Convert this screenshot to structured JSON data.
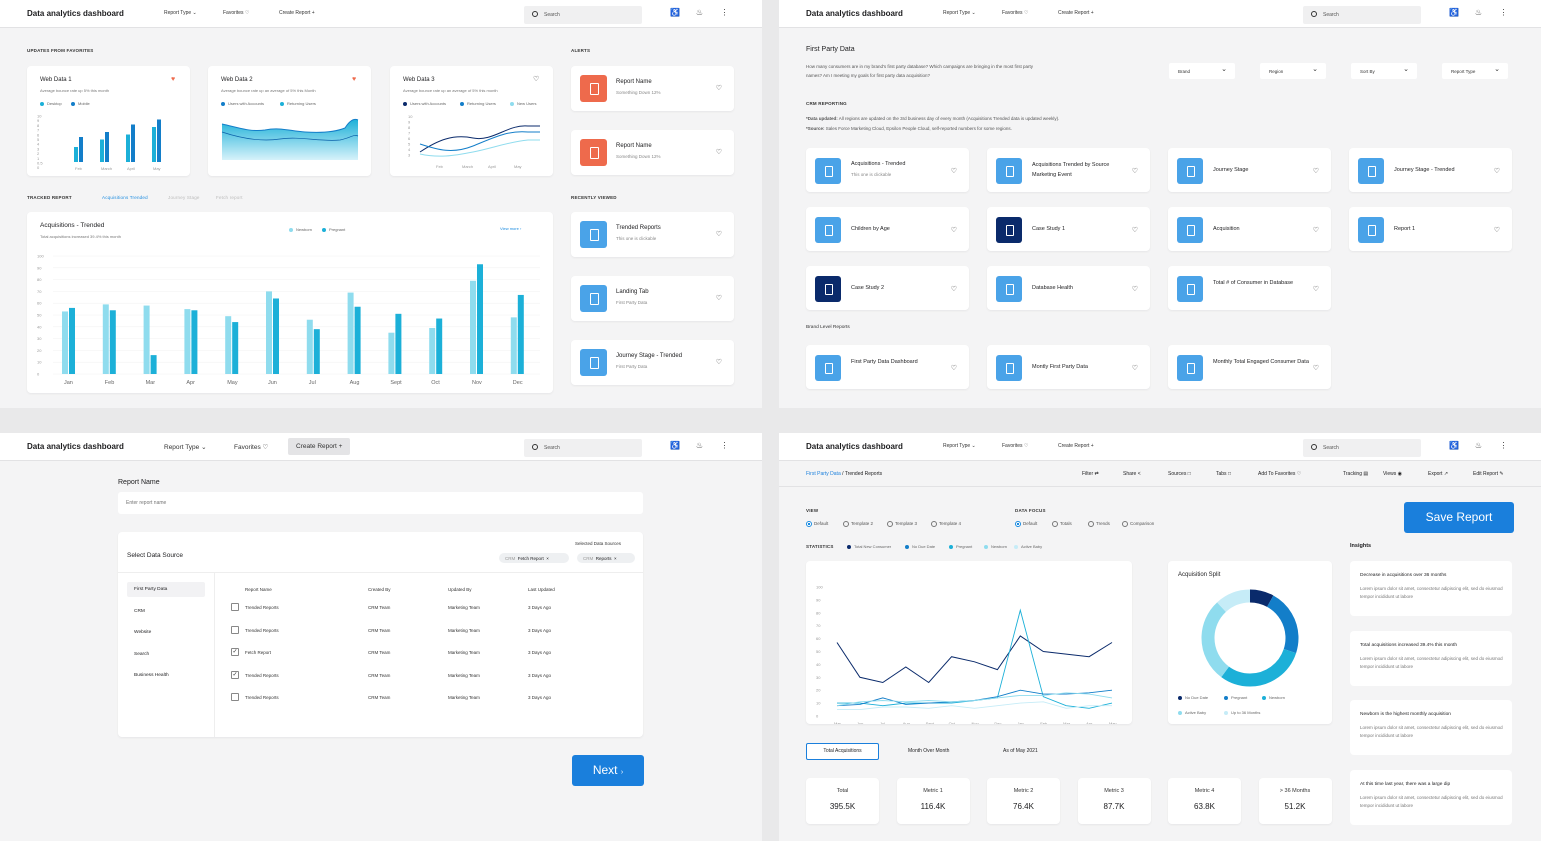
{
  "header": {
    "title": "Data analytics dashboard",
    "report_type": "Report Type",
    "favorites": "Favorites",
    "create_report": "Create Report",
    "search_placeholder": "Search"
  },
  "p1": {
    "favorites_label": "UPDATES FROM FAVORITES",
    "alerts_label": "ALERTS",
    "tracked_label": "TRACKED REPORT",
    "recent_label": "RECENTLY VIEWED",
    "tabs": [
      "Acquisitions Trended",
      "Journey Stage",
      "Fetch report"
    ],
    "web1": {
      "title": "Web Data 1",
      "sub": "Average bounce rate up 5% this month",
      "legend": [
        "Desktop",
        "Mobile"
      ],
      "ticks": [
        "10",
        "9",
        "8",
        "7",
        "6",
        "5",
        "4",
        "3",
        "2",
        "1",
        "0.5",
        "0"
      ],
      "months": [
        "Feb",
        "March",
        "April",
        "May"
      ],
      "desktop": [
        30,
        45,
        55,
        70
      ],
      "mobile": [
        50,
        60,
        75,
        85
      ]
    },
    "web2": {
      "title": "Web Data 2",
      "sub": "Average bounce rate up an average of 5% this Month",
      "legend": [
        "Users with Accounts",
        "Returning Users"
      ]
    },
    "web3": {
      "title": "Web Data 3",
      "sub": "Average bounce rate up an average of 5% this month",
      "legend": [
        "Users with Accounts",
        "Returning Users",
        "New Users"
      ],
      "ticks": [
        "10",
        "9",
        "8",
        "7",
        "6",
        "5",
        "4",
        "3"
      ],
      "months": [
        "Feb",
        "March",
        "April",
        "May"
      ]
    },
    "alerts": [
      {
        "title": "Report Name",
        "sub": "Something Down 12%"
      },
      {
        "title": "Report Name",
        "sub": "Something Down 12%"
      }
    ],
    "recent": [
      {
        "title": "Trended Reports",
        "sub": "This one is clickable"
      },
      {
        "title": "Landing Tab",
        "sub": "First Party Data"
      },
      {
        "title": "Journey Stage - Trended",
        "sub": "First Party Data"
      }
    ],
    "acq": {
      "title": "Acquisitions - Trended",
      "sub": "Total acquisitions increased 39.4% this month",
      "view_more": "View more",
      "legend": [
        "Newborn",
        "Pregnant"
      ]
    },
    "chart_data": {
      "type": "bar",
      "categories": [
        "Jan",
        "Feb",
        "Mar",
        "Apr",
        "May",
        "Jun",
        "Jul",
        "Aug",
        "Sept",
        "Oct",
        "Nov",
        "Dec"
      ],
      "ylim": [
        0,
        100
      ],
      "yticks": [
        "100",
        "90",
        "80",
        "70",
        "60",
        "50",
        "40",
        "30",
        "20",
        "10",
        "0"
      ],
      "series": [
        {
          "name": "Newborn",
          "values": [
            53,
            59,
            58,
            55,
            49,
            70,
            46,
            69,
            35,
            39,
            79,
            48
          ]
        },
        {
          "name": "Pregnant",
          "values": [
            56,
            54,
            16,
            54,
            44,
            64,
            38,
            57,
            51,
            47,
            93,
            67
          ]
        }
      ]
    }
  },
  "p2": {
    "title": "First Party Data",
    "desc": "How many consumers are in my brand's first party database? Which campaigns are bringing in the most first party names? Am I meeting my goals for first party data acquisition?",
    "filters": [
      "Brand",
      "Region",
      "Sort By",
      "Report Type"
    ],
    "crm_label": "CRM REPORTING",
    "data_updated_label": "*Data updated:",
    "data_updated": "All regions are updated on the 3rd business day of every month (Acquisitions Trended data is updated weekly).",
    "source_label": "*Source:",
    "source": "Sales Force Marketing Cloud, Epsilon People Cloud, self-reported numbers for some regions.",
    "tiles": [
      {
        "title": "Acquisitions - Trended",
        "sub": "This one is clickable",
        "dark": false
      },
      {
        "title": "Acquisitions Trended by Source Marketing Event",
        "dark": false
      },
      {
        "title": "Journey Stage",
        "dark": false
      },
      {
        "title": "Journey Stage - Trended",
        "dark": false
      },
      {
        "title": "Children by Age",
        "dark": false
      },
      {
        "title": "Case Study 1",
        "dark": true
      },
      {
        "title": "Acquisition",
        "dark": false
      },
      {
        "title": "Report 1",
        "dark": false
      },
      {
        "title": "Case Study 2",
        "dark": true
      },
      {
        "title": "Database Health",
        "dark": false
      },
      {
        "title": "Total # of Consumer in Database",
        "dark": false
      }
    ],
    "brand_label": "Brand Level Reports",
    "brand_tiles": [
      {
        "title": "First Party Data Dashboard"
      },
      {
        "title": "Montly First Party Data"
      },
      {
        "title": "Monthly Total Engaged Consumer Data"
      }
    ]
  },
  "p3": {
    "name_label": "Report Name",
    "name_placeholder": "Enter report name",
    "select_label": "Select Data Source",
    "selected_label": "Selected Data Sources",
    "chips": [
      {
        "tag": "CRM",
        "label": "Fetch Report"
      },
      {
        "tag": "CRM",
        "label": "Reports"
      }
    ],
    "sources": [
      "First Party Data",
      "CRM",
      "Website",
      "Search",
      "Business Health"
    ],
    "columns": [
      "Report Name",
      "Created By",
      "Updated By",
      "Last Updated"
    ],
    "rows": [
      {
        "name": "Trended Reports",
        "created": "CRM Team",
        "updated": "Marketing Team",
        "last": "3 Days Ago",
        "checked": ""
      },
      {
        "name": "Trended Reports",
        "created": "CRM Team",
        "updated": "Marketing Team",
        "last": "3 Days Ago",
        "checked": ""
      },
      {
        "name": "Fetch Report",
        "created": "CRM Team",
        "updated": "Marketing Team",
        "last": "3 Days Ago",
        "checked": "✓"
      },
      {
        "name": "Trended Reports",
        "created": "CRM Team",
        "updated": "Marketing Team",
        "last": "3 Days Ago",
        "checked": "✓"
      },
      {
        "name": "Trended Reports",
        "created": "CRM Team",
        "updated": "Marketing Team",
        "last": "3 Days Ago",
        "checked": ""
      }
    ],
    "next": "Next"
  },
  "p4": {
    "breadcrumb_root": "First Party Data",
    "breadcrumb_current": "Trended Reports",
    "actions": [
      "Filter",
      "Share",
      "Sources",
      "Tabs",
      "Add To Favorites",
      "Tracking",
      "Views",
      "Export",
      "Edit Report"
    ],
    "view_label": "VIEW",
    "views": [
      "Default",
      "Template 2",
      "Template 3",
      "Template 4"
    ],
    "focus_label": "DATA FOCUS",
    "focus": [
      "Default",
      "Totals",
      "Trends",
      "Comparison"
    ],
    "save": "Save Report",
    "stats_label": "STATISTICS",
    "stats_legend": [
      "Total New Consumer",
      "No Due Date",
      "Pregnant",
      "Newborn",
      "Active Baby"
    ],
    "insights_label": "Insights",
    "split_title": "Acquisition Split",
    "split_legend": [
      "No Due Date",
      "Pregnant",
      "Newborn",
      "Active Baby",
      "Up to 36 Months"
    ],
    "bottom_tabs": [
      "Total Acquisitions",
      "Month Over Month",
      "As of May 2021"
    ],
    "metrics": [
      {
        "label": "Total",
        "value": "395.5K"
      },
      {
        "label": "Metric 1",
        "value": "116.4K"
      },
      {
        "label": "Metric 2",
        "value": "76.4K"
      },
      {
        "label": "Metric 3",
        "value": "87.7K"
      },
      {
        "label": "Metric 4",
        "value": "63.8K"
      },
      {
        "label": "> 36 Months",
        "value": "51.2K"
      }
    ],
    "insights": [
      {
        "title": "Decrease in acquisitions over 36 months",
        "body": "Lorem ipsum dolor sit amet, consectetur adipiscing elit, sed do eiusmod tempor incididunt ut labore"
      },
      {
        "title": "Total acquisitions increased 39.4% this month",
        "body": "Lorem ipsum dolor sit amet, consectetur adipiscing elit, sed do eiusmod tempor incididunt ut labore"
      },
      {
        "title": "Newborn is the highest monthly acquisition",
        "body": "Lorem ipsum dolor sit amet, consectetur adipiscing elit, sed do eiusmod tempor incididunt ut labore"
      },
      {
        "title": "At this time last year, there was a large dip",
        "body": "Lorem ipsum dolor sit amet, consectetur adipiscing elit, sed do eiusmod tempor incididunt ut labore"
      }
    ],
    "chart_data": [
      {
        "type": "line",
        "x": [
          "Mar",
          "Jun",
          "Jul",
          "Aug",
          "Sept",
          "Oct",
          "Nov",
          "Dec",
          "Jan",
          "Feb",
          "Mar",
          "Apr",
          "May"
        ],
        "ylim": [
          0,
          100
        ],
        "yticks": [
          "100",
          "90",
          "80",
          "70",
          "60",
          "50",
          "40",
          "30",
          "20",
          "10",
          "0"
        ],
        "series": [
          {
            "name": "Total New Consumer",
            "values": [
              57,
              30,
              26,
              38,
              26,
              46,
              42,
              36,
              62,
              50,
              48,
              46,
              57
            ]
          },
          {
            "name": "No Due Date",
            "values": [
              10,
              10,
              8,
              10,
              10,
              10,
              12,
              14,
              82,
              15,
              8,
              6,
              10
            ]
          },
          {
            "name": "Pregnant",
            "values": [
              8,
              9,
              14,
              9,
              10,
              11,
              12,
              15,
              20,
              17,
              17,
              18,
              20
            ]
          },
          {
            "name": "Newborn",
            "values": [
              8,
              11,
              12,
              11,
              12,
              11,
              12,
              14,
              16,
              16,
              18,
              17,
              14
            ]
          },
          {
            "name": "Active Baby",
            "values": [
              5,
              5,
              7,
              7,
              6,
              8,
              6,
              8,
              10,
              11,
              6,
              8,
              8
            ]
          }
        ]
      },
      {
        "type": "pie",
        "labels": [
          "No Due Date",
          "Pregnant",
          "Newborn",
          "Active Baby",
          "Up to 36 Months"
        ],
        "values": [
          8,
          22,
          30,
          28,
          12
        ]
      }
    ]
  },
  "colors": {
    "blue_dark": "#0a2a6b",
    "blue": "#137ec9",
    "cyan": "#1cb0d8",
    "light": "#8fdcee",
    "pale": "#c6ecf7",
    "accent": "#1a7fdc",
    "alert": "#ee6a4c"
  }
}
